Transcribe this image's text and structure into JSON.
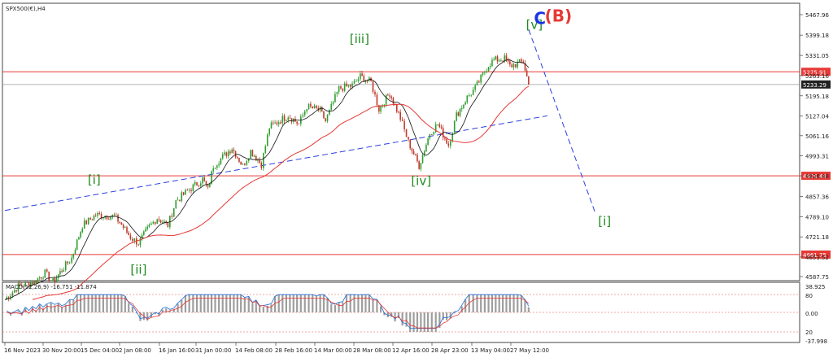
{
  "chart_data": {
    "type": "line",
    "title": "SPX500(€),H4",
    "symbol_title": "SPX500(€),H4",
    "price_axis_ticks": [
      "5467.96",
      "5399.18",
      "5331.05",
      "5263.16",
      "5195.18",
      "5127.04",
      "5061.16",
      "4993.31",
      "4926.48",
      "4857.36",
      "4789.10",
      "4721.18",
      "4653.52",
      "4587.75"
    ],
    "horizontal_levels": [
      {
        "value": 5275.91,
        "label": "5275.91",
        "color": "#e53935"
      },
      {
        "value": 4926.48,
        "label": "4926.48",
        "color": "#e53935"
      },
      {
        "value": 4661.75,
        "label": "4661.75",
        "color": "#e53935"
      }
    ],
    "current_price": {
      "value": 5233.29,
      "label": "5233.29"
    },
    "time_axis_ticks": [
      "16 Nov 2023",
      "30 Nov 20:00",
      "15 Dec 04:00",
      "2 Jan 08:00",
      "16 Jan 16:00",
      "31 Jan 00:00",
      "14 Feb 08:00",
      "28 Feb 16:00",
      "14 Mar 00:00",
      "28 Mar 08:00",
      "12 Apr 16:00",
      "28 Apr 23:00",
      "13 May 04:00",
      "27 May 12:00"
    ],
    "wave_labels": [
      {
        "text": "[i]",
        "x_date": "17 Dec",
        "y": 4900,
        "color": "#1f8a1f"
      },
      {
        "text": "[ii]",
        "x_date": "2 Jan",
        "y": 4598,
        "color": "#1f8a1f"
      },
      {
        "text": "[iii]",
        "x_date": "24 Mar",
        "y": 5372,
        "color": "#1f8a1f"
      },
      {
        "text": "[iv]",
        "x_date": "16 Apr",
        "y": 4895,
        "color": "#1f8a1f"
      },
      {
        "text": "[v]",
        "x_date": "29 May",
        "y": 5420,
        "color": "#1f8a1f"
      },
      {
        "text": "C",
        "x_date": "1 Jun",
        "y": 5437,
        "color": "#1a33e6"
      },
      {
        "text": "(B)",
        "x_date": "5 Jun",
        "y": 5445,
        "color": "#e53935"
      },
      {
        "text": "[i]",
        "x_date": "25 Jun",
        "y": 4760,
        "color": "#1f8a1f"
      }
    ],
    "price_series": [
      {
        "date": "16 Nov",
        "price": 4510
      },
      {
        "date": "21 Nov",
        "price": 4555
      },
      {
        "date": "27 Nov",
        "price": 4570
      },
      {
        "date": "1 Dec",
        "price": 4600
      },
      {
        "date": "4 Dec",
        "price": 4570
      },
      {
        "date": "8 Dec",
        "price": 4618
      },
      {
        "date": "11 Dec",
        "price": 4650
      },
      {
        "date": "15 Dec",
        "price": 4760
      },
      {
        "date": "18 Dec",
        "price": 4780
      },
      {
        "date": "20 Dec",
        "price": 4795
      },
      {
        "date": "27 Dec",
        "price": 4790
      },
      {
        "date": "29 Dec",
        "price": 4770
      },
      {
        "date": "2 Jan",
        "price": 4720
      },
      {
        "date": "5 Jan",
        "price": 4700
      },
      {
        "date": "9 Jan",
        "price": 4755
      },
      {
        "date": "12 Jan",
        "price": 4785
      },
      {
        "date": "16 Jan",
        "price": 4760
      },
      {
        "date": "19 Jan",
        "price": 4842
      },
      {
        "date": "24 Jan",
        "price": 4880
      },
      {
        "date": "29 Jan",
        "price": 4915
      },
      {
        "date": "31 Jan",
        "price": 4880
      },
      {
        "date": "2 Feb",
        "price": 4960
      },
      {
        "date": "9 Feb",
        "price": 5020
      },
      {
        "date": "13 Feb",
        "price": 4960
      },
      {
        "date": "16 Feb",
        "price": 5010
      },
      {
        "date": "20 Feb",
        "price": 4965
      },
      {
        "date": "23 Feb",
        "price": 5090
      },
      {
        "date": "1 Mar",
        "price": 5130
      },
      {
        "date": "5 Mar",
        "price": 5100
      },
      {
        "date": "8 Mar",
        "price": 5160
      },
      {
        "date": "13 Mar",
        "price": 5145
      },
      {
        "date": "15 Mar",
        "price": 5110
      },
      {
        "date": "20 Mar",
        "price": 5220
      },
      {
        "date": "25 Mar",
        "price": 5230
      },
      {
        "date": "28 Mar",
        "price": 5260
      },
      {
        "date": "1 Apr",
        "price": 5240
      },
      {
        "date": "4 Apr",
        "price": 5150
      },
      {
        "date": "8 Apr",
        "price": 5205
      },
      {
        "date": "12 Apr",
        "price": 5120
      },
      {
        "date": "15 Apr",
        "price": 5040
      },
      {
        "date": "19 Apr",
        "price": 4960
      },
      {
        "date": "23 Apr",
        "price": 5070
      },
      {
        "date": "26 Apr",
        "price": 5100
      },
      {
        "date": "30 Apr",
        "price": 5030
      },
      {
        "date": "3 May",
        "price": 5130
      },
      {
        "date": "7 May",
        "price": 5190
      },
      {
        "date": "10 May",
        "price": 5220
      },
      {
        "date": "15 May",
        "price": 5300
      },
      {
        "date": "17 May",
        "price": 5315
      },
      {
        "date": "21 May",
        "price": 5320
      },
      {
        "date": "23 May",
        "price": 5295
      },
      {
        "date": "28 May",
        "price": 5310
      },
      {
        "date": "30 May",
        "price": 5233
      }
    ],
    "projection": [
      {
        "date": "30 May",
        "price": 5418
      },
      {
        "date": "24 Jun",
        "price": 4800
      }
    ],
    "trendline": [
      {
        "date": "16 Nov",
        "price": 4810
      },
      {
        "date": "6 Jun",
        "price": 5128
      }
    ],
    "macd": {
      "label": "MACD(12,26,9) -16.751 -11.874",
      "axis_ticks": [
        "38.925",
        "80",
        "0.00",
        "20",
        "-37.998"
      ]
    }
  }
}
